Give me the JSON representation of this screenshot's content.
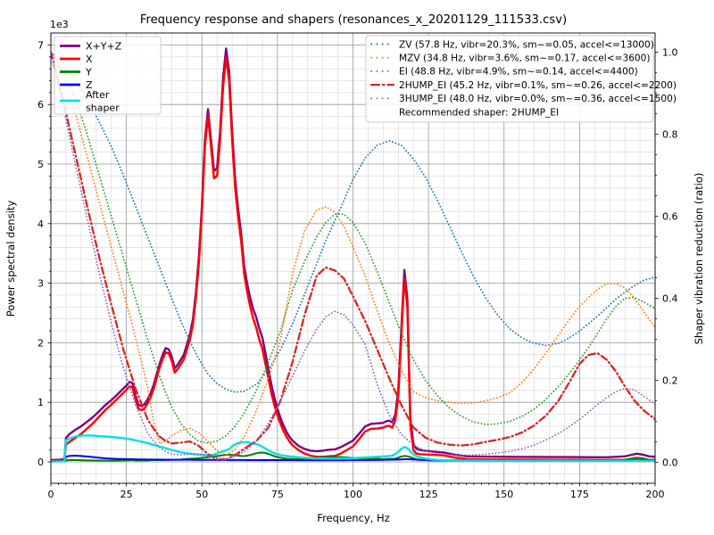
{
  "chart_data": {
    "type": "line",
    "title": "Frequency response and shapers (resonances_x_20201129_111533.csv)",
    "xlabel": "Frequency, Hz",
    "ylabel_left": "Power spectral density",
    "ylabel_right": "Shaper vibration reduction (ratio)",
    "y_offset_text": "1e3",
    "xlim": [
      0,
      200
    ],
    "ylim_left": [
      0,
      7000
    ],
    "ylim_right": [
      0,
      1.0
    ],
    "x_ticks": [
      0,
      25,
      50,
      75,
      100,
      125,
      150,
      175,
      200
    ],
    "y_ticks_left": [
      0,
      1,
      2,
      3,
      4,
      5,
      6,
      7
    ],
    "y_ticks_right": [
      "0.0",
      "0.2",
      "0.4",
      "0.6",
      "0.8",
      "1.0"
    ],
    "grid": "major+minor",
    "minor_steps": {
      "x_tick": 2.5,
      "x_grid": 5,
      "y_left": 200,
      "y_right": 0.05
    },
    "legend_left_position": "upper left",
    "legend_right_position": "upper right",
    "recommendation": "Recommended shaper: 2HUMP_EI",
    "psd_freq": [
      0,
      3,
      4.5,
      5,
      6,
      8,
      10,
      12,
      14,
      16,
      18,
      20,
      22,
      24,
      25,
      26,
      27,
      28,
      29,
      30,
      31,
      32,
      33,
      34,
      35,
      36,
      37,
      38,
      39,
      40,
      41,
      42,
      43,
      44,
      45,
      46,
      47,
      48,
      49,
      50,
      51,
      52,
      53,
      54,
      55,
      56,
      57,
      58,
      59,
      60,
      61,
      62,
      63,
      64,
      65,
      66,
      67,
      68,
      69,
      70,
      71,
      72,
      73,
      74,
      75,
      76,
      77,
      78,
      79,
      80,
      82,
      84,
      86,
      88,
      90,
      92,
      94,
      96,
      98,
      100,
      102,
      104,
      106,
      108,
      110,
      111,
      112,
      113,
      114,
      115,
      116,
      117,
      118,
      119,
      120,
      121,
      122,
      124,
      126,
      128,
      130,
      134,
      138,
      142,
      146,
      150,
      155,
      160,
      165,
      170,
      175,
      180,
      185,
      190,
      192,
      194,
      196,
      198,
      200
    ],
    "psd_series": [
      {
        "name": "X+Y+Z",
        "color": "#800080",
        "width": 2.4,
        "values": [
          31,
          36,
          45,
          400,
          460,
          535,
          598,
          675,
          755,
          852,
          952,
          1035,
          1132,
          1233,
          1281,
          1343,
          1322,
          1118,
          957,
          937,
          966,
          1045,
          1148,
          1290,
          1469,
          1648,
          1798,
          1910,
          1889,
          1771,
          1571,
          1634,
          1715,
          1800,
          1965,
          2137,
          2389,
          2842,
          3446,
          4302,
          5405,
          5921,
          5418,
          4885,
          4930,
          5537,
          6444,
          6940,
          6552,
          5550,
          4743,
          4236,
          3831,
          3279,
          2985,
          2745,
          2560,
          2425,
          2235,
          2088,
          1830,
          1565,
          1295,
          1075,
          891,
          739,
          611,
          504,
          419,
          357,
          268,
          216,
          188,
          178,
          188,
          203,
          210,
          248,
          303,
          357,
          470,
          595,
          638,
          647,
          654,
          683,
          691,
          664,
          793,
          1210,
          2232,
          3224,
          2740,
          723,
          300,
          222,
          202,
          186,
          175,
          166,
          158,
          118,
          92,
          89,
          87,
          86,
          84,
          84,
          81,
          81,
          80,
          78,
          80,
          93,
          116,
          138,
          121,
          93,
          86
        ]
      },
      {
        "name": "X",
        "color": "#ff0000",
        "width": 2.4,
        "values": [
          15,
          20,
          25,
          290,
          330,
          400,
          470,
          560,
          650,
          760,
          870,
          960,
          1060,
          1160,
          1210,
          1270,
          1250,
          1050,
          890,
          870,
          900,
          980,
          1080,
          1220,
          1400,
          1580,
          1730,
          1840,
          1820,
          1700,
          1500,
          1560,
          1640,
          1720,
          1880,
          2050,
          2300,
          2750,
          3350,
          4200,
          5300,
          5810,
          5300,
          4760,
          4800,
          5400,
          6300,
          6790,
          6400,
          5400,
          4600,
          4100,
          3700,
          3150,
          2850,
          2600,
          2400,
          2250,
          2050,
          1900,
          1650,
          1400,
          1150,
          950,
          780,
          640,
          520,
          420,
          340,
          280,
          195,
          140,
          105,
          85,
          85,
          95,
          100,
          140,
          200,
          260,
          380,
          510,
          555,
          560,
          575,
          600,
          605,
          575,
          700,
          1100,
          2100,
          3080,
          2600,
          600,
          200,
          140,
          130,
          125,
          120,
          115,
          110,
          70,
          45,
          42,
          40,
          40,
          38,
          38,
          36,
          36,
          35,
          33,
          33,
          33,
          36,
          40,
          36,
          33,
          33
        ]
      },
      {
        "name": "Y",
        "color": "#008000",
        "width": 2.0,
        "values": [
          8,
          8,
          10,
          25,
          30,
          30,
          28,
          25,
          25,
          22,
          22,
          20,
          22,
          25,
          25,
          28,
          28,
          25,
          25,
          25,
          25,
          25,
          28,
          30,
          30,
          30,
          30,
          32,
          32,
          35,
          35,
          38,
          40,
          45,
          50,
          52,
          55,
          58,
          62,
          68,
          72,
          78,
          85,
          92,
          98,
          105,
          112,
          118,
          120,
          118,
          112,
          105,
          100,
          98,
          105,
          115,
          130,
          145,
          155,
          158,
          150,
          135,
          115,
          95,
          82,
          70,
          62,
          55,
          50,
          48,
          45,
          48,
          55,
          65,
          75,
          80,
          82,
          80,
          75,
          68,
          60,
          55,
          52,
          55,
          45,
          48,
          50,
          52,
          55,
          70,
          90,
          100,
          95,
          80,
          60,
          45,
          38,
          30,
          25,
          22,
          20,
          20,
          20,
          20,
          20,
          20,
          20,
          20,
          20,
          20,
          20,
          20,
          22,
          35,
          55,
          72,
          60,
          35,
          28
        ]
      },
      {
        "name": "Z",
        "color": "#0000ff",
        "width": 2.0,
        "values": [
          8,
          8,
          10,
          85,
          100,
          105,
          100,
          90,
          80,
          70,
          60,
          55,
          50,
          48,
          46,
          45,
          44,
          43,
          42,
          42,
          41,
          40,
          40,
          40,
          39,
          38,
          38,
          38,
          37,
          36,
          36,
          36,
          35,
          35,
          35,
          35,
          34,
          34,
          34,
          34,
          33,
          33,
          33,
          33,
          32,
          32,
          32,
          32,
          32,
          32,
          31,
          31,
          31,
          31,
          30,
          30,
          30,
          30,
          30,
          30,
          30,
          30,
          30,
          30,
          29,
          29,
          29,
          29,
          29,
          29,
          28,
          28,
          28,
          28,
          28,
          28,
          28,
          28,
          28,
          29,
          30,
          30,
          31,
          32,
          34,
          35,
          36,
          37,
          38,
          40,
          42,
          44,
          45,
          43,
          40,
          37,
          34,
          31,
          30,
          29,
          28,
          28,
          27,
          27,
          27,
          26,
          26,
          26,
          25,
          25,
          25,
          25,
          25,
          25,
          25,
          26,
          25,
          25,
          25
        ]
      },
      {
        "name": "After\nshaper",
        "color": "#00e0ea",
        "width": 2.4,
        "values": [
          5,
          8,
          10,
          360,
          390,
          425,
          440,
          445,
          440,
          432,
          425,
          418,
          408,
          398,
          390,
          382,
          372,
          362,
          350,
          340,
          328,
          315,
          300,
          285,
          272,
          258,
          245,
          230,
          215,
          200,
          188,
          175,
          162,
          152,
          145,
          138,
          132,
          126,
          122,
          118,
          114,
          110,
          115,
          125,
          140,
          160,
          178,
          195,
          215,
          260,
          295,
          315,
          325,
          330,
          328,
          320,
          310,
          300,
          280,
          255,
          225,
          195,
          168,
          145,
          130,
          115,
          105,
          98,
          92,
          88,
          78,
          70,
          62,
          58,
          56,
          55,
          55,
          56,
          58,
          62,
          68,
          75,
          80,
          85,
          92,
          95,
          98,
          105,
          130,
          170,
          220,
          250,
          230,
          180,
          130,
          95,
          80,
          55,
          40,
          32,
          28,
          24,
          22,
          21,
          20,
          20,
          20,
          19,
          19,
          19,
          18,
          18,
          18,
          18,
          18,
          19,
          18,
          18,
          18
        ]
      }
    ],
    "shaper_freq": [
      0,
      4,
      8,
      12,
      16,
      20,
      24,
      28,
      32,
      34,
      36,
      38,
      40,
      43,
      46,
      49,
      52,
      55,
      58,
      61,
      64,
      68,
      72,
      76,
      80,
      84,
      88,
      91,
      94,
      97,
      100,
      104,
      108,
      112,
      116,
      120,
      124,
      128,
      132,
      136,
      140,
      144,
      148,
      152,
      156,
      160,
      164,
      168,
      172,
      175,
      178,
      181,
      184,
      187,
      190,
      193,
      196,
      200
    ],
    "shaper_series": [
      {
        "name": "ZV",
        "label": "ZV (57.8 Hz, vibr=20.3%, sm~=0.05, accel<=13000)",
        "color": "#1f77b4",
        "style": "dotted",
        "values": [
          1.0,
          0.97,
          0.935,
          0.885,
          0.83,
          0.77,
          0.7,
          0.625,
          0.55,
          0.512,
          0.475,
          0.437,
          0.4,
          0.345,
          0.295,
          0.252,
          0.215,
          0.192,
          0.178,
          0.171,
          0.173,
          0.19,
          0.225,
          0.275,
          0.338,
          0.41,
          0.485,
          0.54,
          0.59,
          0.638,
          0.69,
          0.742,
          0.773,
          0.784,
          0.773,
          0.74,
          0.695,
          0.638,
          0.575,
          0.512,
          0.452,
          0.4,
          0.358,
          0.325,
          0.303,
          0.29,
          0.285,
          0.29,
          0.305,
          0.32,
          0.338,
          0.357,
          0.377,
          0.398,
          0.415,
          0.43,
          0.443,
          0.452
        ]
      },
      {
        "name": "MZV",
        "label": "MZV (34.8 Hz, vibr=3.6%, sm~=0.17, accel<=3600)",
        "color": "#ff7f0e",
        "style": "dotted",
        "values": [
          1.0,
          0.945,
          0.855,
          0.745,
          0.635,
          0.525,
          0.415,
          0.305,
          0.185,
          0.1,
          0.045,
          0.052,
          0.065,
          0.078,
          0.083,
          0.072,
          0.05,
          0.028,
          0.018,
          0.032,
          0.062,
          0.125,
          0.205,
          0.3,
          0.46,
          0.565,
          0.615,
          0.623,
          0.61,
          0.575,
          0.525,
          0.455,
          0.37,
          0.29,
          0.225,
          0.172,
          0.158,
          0.15,
          0.146,
          0.144,
          0.145,
          0.15,
          0.158,
          0.17,
          0.195,
          0.228,
          0.268,
          0.31,
          0.352,
          0.38,
          0.402,
          0.422,
          0.435,
          0.436,
          0.425,
          0.402,
          0.37,
          0.328
        ]
      },
      {
        "name": "EI",
        "label": "EI (48.8 Hz, vibr=4.9%, sm~=0.14, accel<=4400)",
        "color": "#2ca02c",
        "style": "dotted",
        "values": [
          1.0,
          0.955,
          0.89,
          0.8,
          0.7,
          0.6,
          0.5,
          0.4,
          0.3,
          0.255,
          0.21,
          0.17,
          0.135,
          0.095,
          0.068,
          0.051,
          0.047,
          0.052,
          0.065,
          0.088,
          0.12,
          0.175,
          0.245,
          0.32,
          0.42,
          0.49,
          0.55,
          0.585,
          0.605,
          0.605,
          0.585,
          0.535,
          0.465,
          0.39,
          0.315,
          0.25,
          0.2,
          0.162,
          0.132,
          0.112,
          0.098,
          0.092,
          0.094,
          0.1,
          0.112,
          0.13,
          0.155,
          0.185,
          0.22,
          0.25,
          0.28,
          0.315,
          0.35,
          0.38,
          0.4,
          0.402,
          0.392,
          0.375
        ]
      },
      {
        "name": "2HUMP_EI",
        "label": "2HUMP_EI (45.2 Hz, vibr=0.1%, sm~=0.26, accel<=2200)",
        "color": "#d62728",
        "style": "dashdot",
        "values": [
          1.0,
          0.885,
          0.755,
          0.625,
          0.5,
          0.385,
          0.275,
          0.18,
          0.105,
          0.082,
          0.063,
          0.052,
          0.046,
          0.048,
          0.051,
          0.04,
          0.02,
          0.007,
          0.007,
          0.018,
          0.033,
          0.052,
          0.085,
          0.15,
          0.245,
          0.36,
          0.455,
          0.475,
          0.468,
          0.448,
          0.405,
          0.345,
          0.275,
          0.205,
          0.14,
          0.085,
          0.06,
          0.048,
          0.043,
          0.041,
          0.044,
          0.05,
          0.055,
          0.062,
          0.073,
          0.09,
          0.115,
          0.15,
          0.2,
          0.24,
          0.262,
          0.266,
          0.25,
          0.222,
          0.185,
          0.152,
          0.128,
          0.105
        ]
      },
      {
        "name": "3HUMP_EI",
        "label": "3HUMP_EI (48.0 Hz, vibr=0.0%, sm~=0.36, accel<=1500)",
        "color": "#9467bd",
        "style": "dotted",
        "values": [
          1.0,
          0.87,
          0.73,
          0.595,
          0.462,
          0.34,
          0.23,
          0.14,
          0.072,
          0.052,
          0.036,
          0.026,
          0.02,
          0.018,
          0.02,
          0.02,
          0.016,
          0.011,
          0.009,
          0.014,
          0.026,
          0.052,
          0.095,
          0.15,
          0.21,
          0.272,
          0.325,
          0.355,
          0.368,
          0.36,
          0.335,
          0.288,
          0.19,
          0.115,
          0.068,
          0.042,
          0.028,
          0.021,
          0.018,
          0.017,
          0.018,
          0.02,
          0.023,
          0.027,
          0.033,
          0.042,
          0.055,
          0.07,
          0.089,
          0.105,
          0.123,
          0.141,
          0.158,
          0.172,
          0.18,
          0.177,
          0.163,
          0.142
        ]
      }
    ],
    "colors": {
      "major_grid": "#979797",
      "minor_grid": "#dcdcdc",
      "spine": "#000000",
      "legend_border": "#cccccc",
      "legend_bg": "#ffffff"
    }
  }
}
